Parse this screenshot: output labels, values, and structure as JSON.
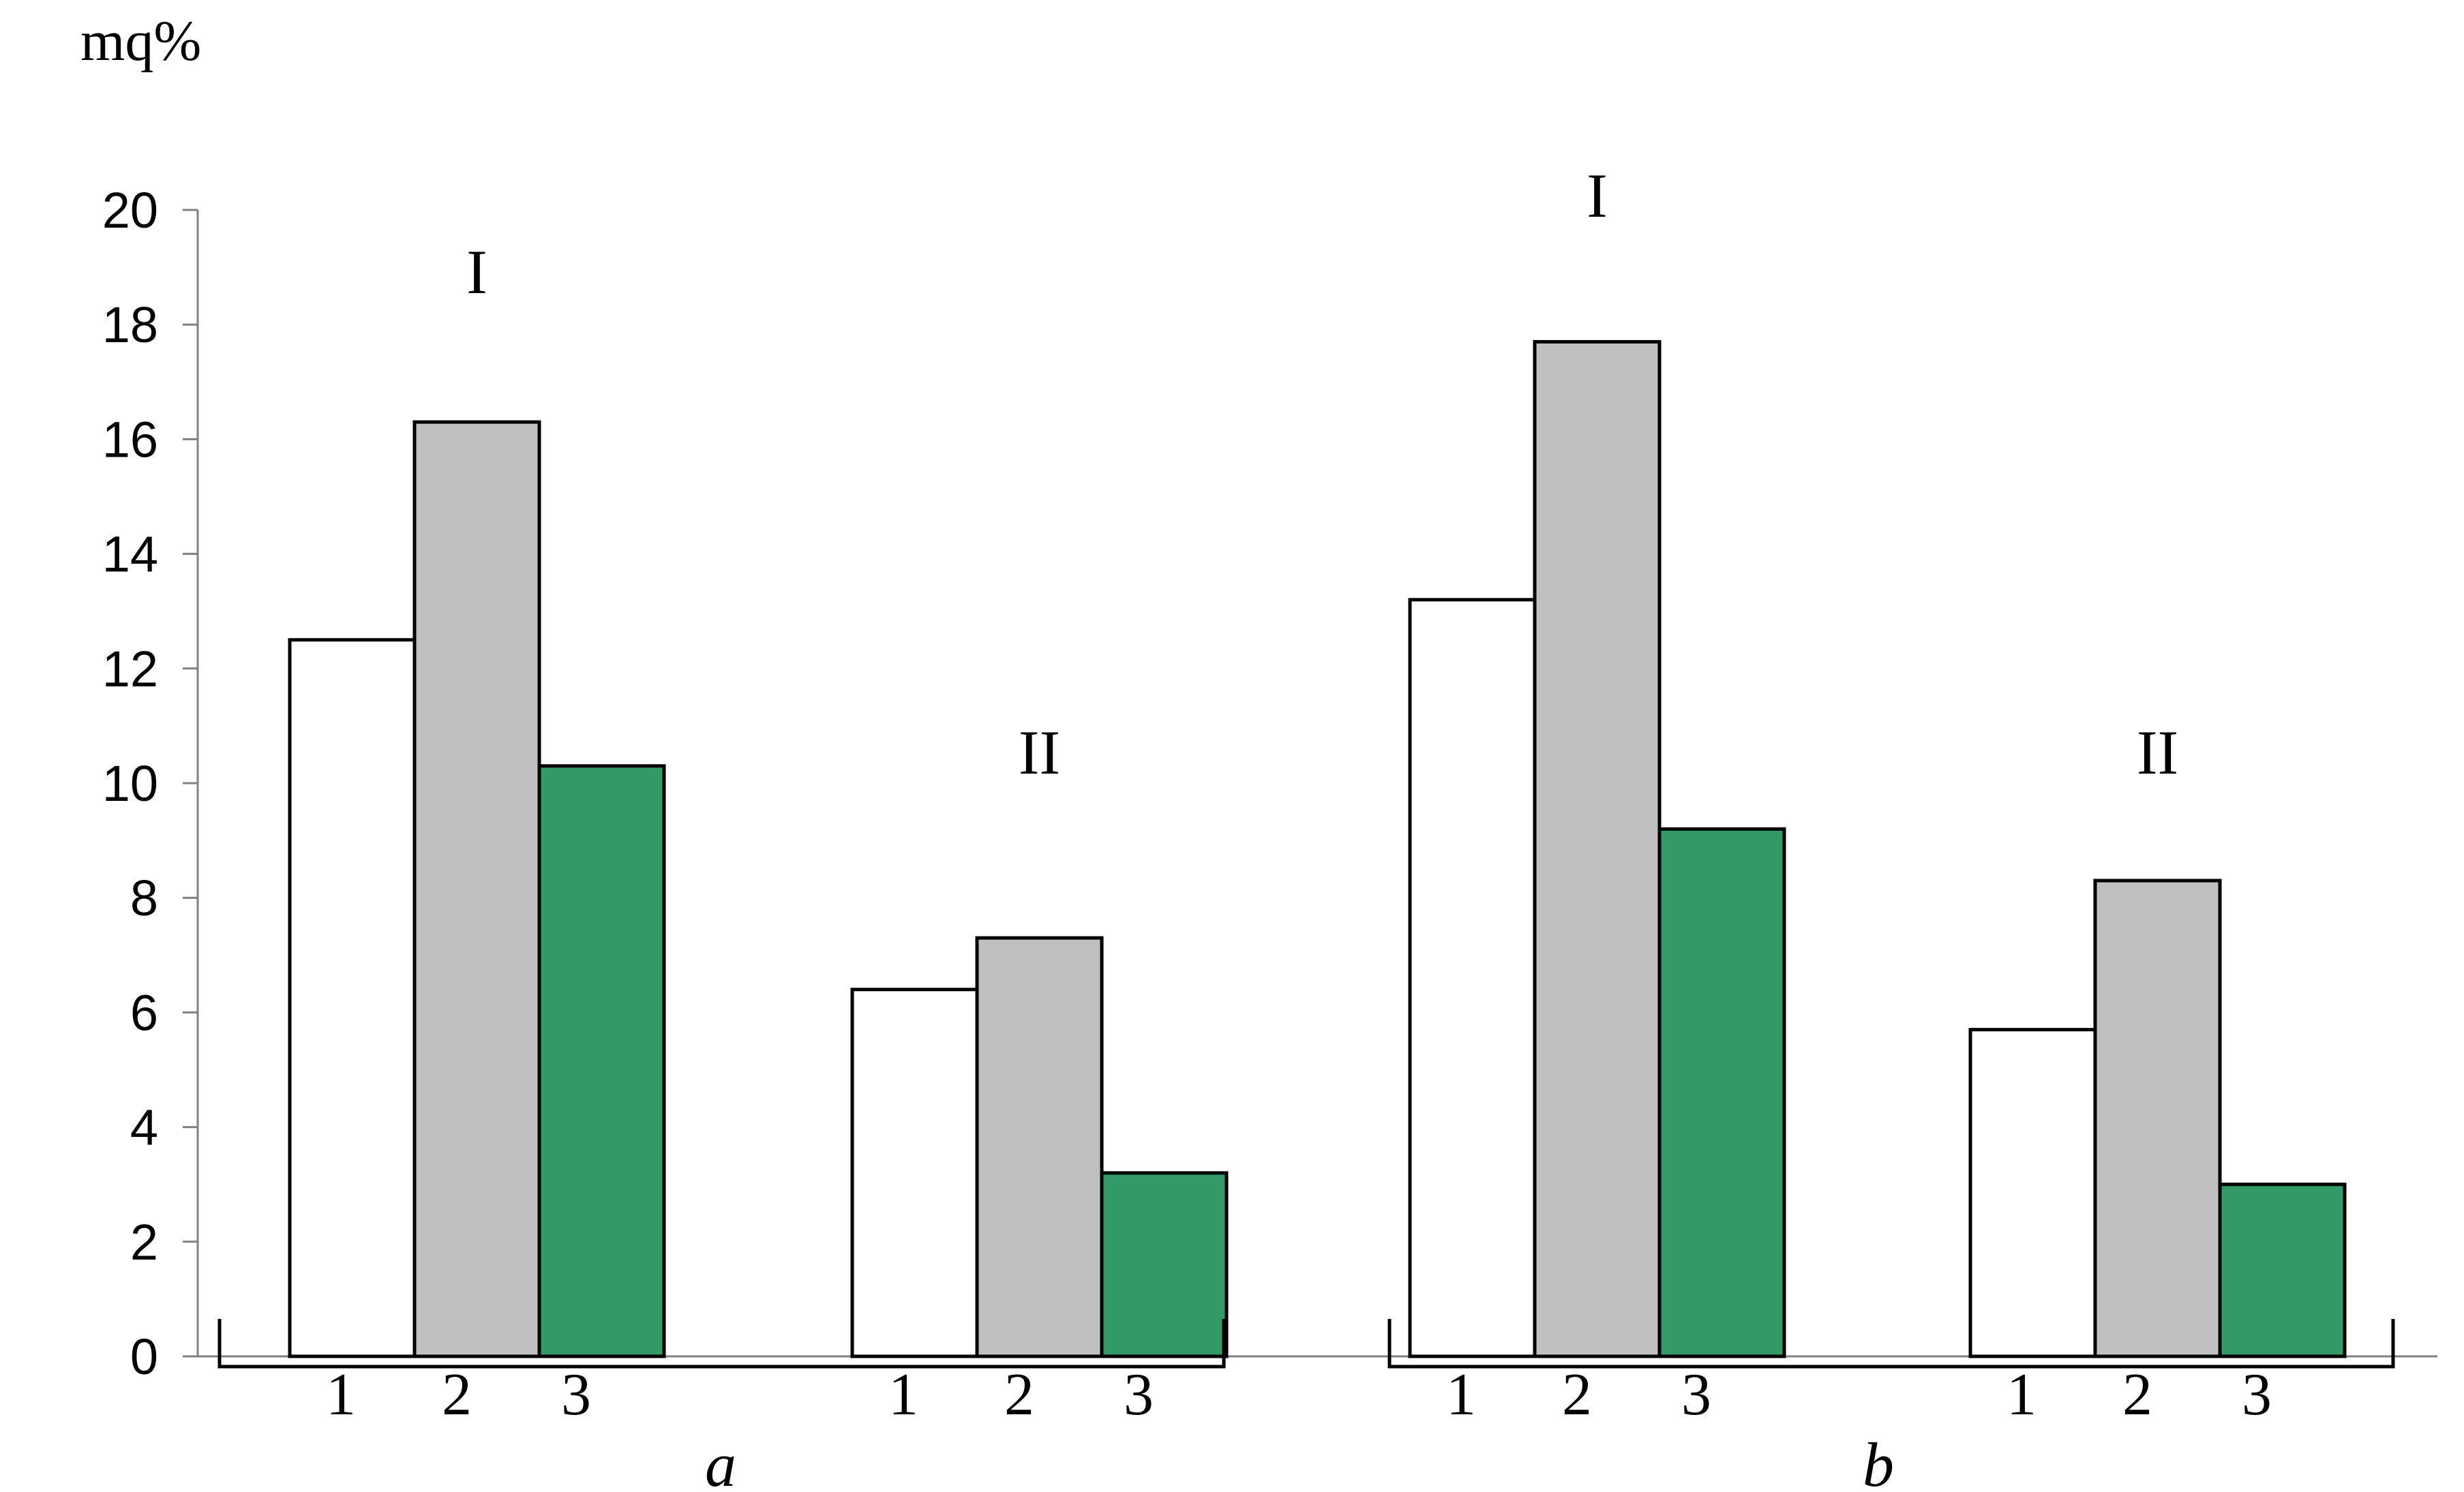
{
  "chart_data": {
    "type": "bar",
    "ylabel": "mq%",
    "ylim": [
      0,
      20
    ],
    "yticks": [
      0,
      2,
      4,
      6,
      8,
      10,
      12,
      14,
      16,
      18,
      20
    ],
    "grid": false,
    "legend": "none",
    "series_colors": [
      "#ffffff",
      "#c0c0c0",
      "#339966"
    ],
    "panels": [
      {
        "label": "a",
        "groups": [
          {
            "label": "I",
            "categories": [
              "1",
              "2",
              "3"
            ],
            "values": [
              12.5,
              16.3,
              10.3
            ]
          },
          {
            "label": "II",
            "categories": [
              "1",
              "2",
              "3"
            ],
            "values": [
              6.4,
              7.3,
              3.2
            ]
          }
        ]
      },
      {
        "label": "b",
        "groups": [
          {
            "label": "I",
            "categories": [
              "1",
              "2",
              "3"
            ],
            "values": [
              13.2,
              17.7,
              9.2
            ]
          },
          {
            "label": "II",
            "categories": [
              "1",
              "2",
              "3"
            ],
            "values": [
              5.7,
              8.3,
              3.0
            ]
          }
        ]
      }
    ]
  }
}
